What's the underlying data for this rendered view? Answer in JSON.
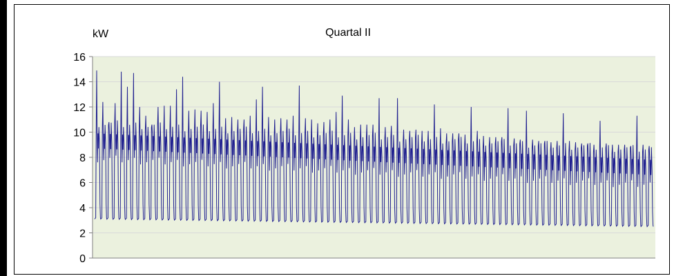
{
  "chart_data": {
    "type": "line",
    "title": "Quartal II",
    "ylabel": "kW",
    "xlabel": "",
    "ylim": [
      0,
      16
    ],
    "yticks": [
      "0",
      "2",
      "4",
      "6",
      "8",
      "10",
      "12",
      "14",
      "16"
    ],
    "grid": true,
    "legend": "none",
    "colors": {
      "plot_bg": "#ebf1de",
      "line": "#1f1f8f",
      "grid": "#d9d9d9",
      "axis": "#808080"
    },
    "series": [
      {
        "days": 91,
        "baseline_kw": [
          3.1,
          2.5
        ],
        "daytime_kw": [
          9.5,
          7.4
        ],
        "daily_peak_kw": [
          14.9,
          12.4,
          10.8,
          12.3,
          14.8,
          13.6,
          14.7,
          12.0,
          11.3,
          10.6,
          12.0,
          12.1,
          12.1,
          13.4,
          14.4,
          11.7,
          11.8,
          11.7,
          11.6,
          12.3,
          14.0,
          11.1,
          11.2,
          11.0,
          11.0,
          11.3,
          12.6,
          13.6,
          11.2,
          11.0,
          11.1,
          11.0,
          11.3,
          13.7,
          11.1,
          11.0,
          10.7,
          10.8,
          11.0,
          11.6,
          12.9,
          11.0,
          10.4,
          10.6,
          10.6,
          10.6,
          12.7,
          10.4,
          10.5,
          12.7,
          10.2,
          10.1,
          10.2,
          10.1,
          10.1,
          12.2,
          10.3,
          9.9,
          9.9,
          9.9,
          9.8,
          12.0,
          10.1,
          9.7,
          9.6,
          9.6,
          9.6,
          11.9,
          9.5,
          9.4,
          11.7,
          9.4,
          9.3,
          9.3,
          9.2,
          9.3,
          11.5,
          9.3,
          9.2,
          9.1,
          9.1,
          9.0,
          10.9,
          9.1,
          9.0,
          9.0,
          9.0,
          8.9,
          11.3,
          9.0,
          8.9
        ]
      }
    ]
  }
}
